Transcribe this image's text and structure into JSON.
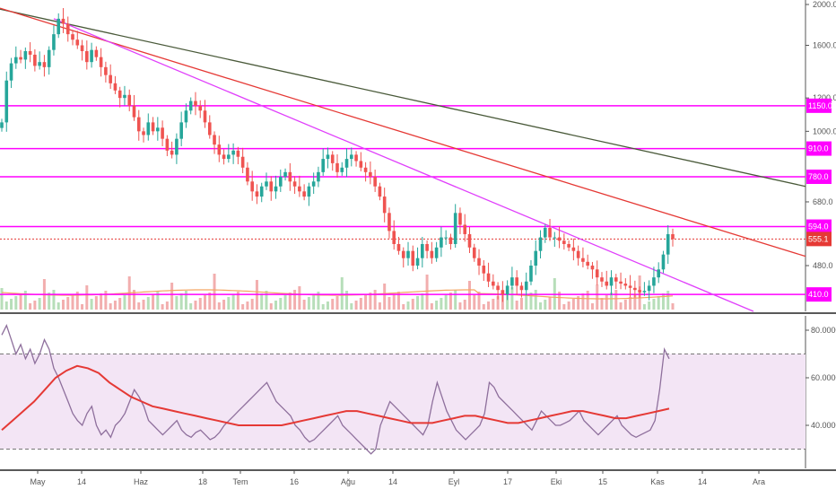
{
  "colors": {
    "up": "#26a69a",
    "down": "#ef5350",
    "volume_up": "#a5d6a7",
    "volume_down": "#ef9a9a",
    "horizontal_level": "#ff00ff",
    "trend_magenta": "#e040fb",
    "trend_red": "#e53935",
    "trend_dark": "#4a5a3a",
    "rsi_line": "#8e6f9c",
    "rsi_ma": "#e53935",
    "rsi_band": "#f3e5f5",
    "volume_ma": "#f4a460",
    "last_price_line": "#e53935"
  },
  "chart_data": [
    {
      "type": "candlestick",
      "title": "",
      "y_scale": "log",
      "ylim": [
        365,
        2030
      ],
      "y_ticks": [
        "2000.0",
        "1600.0",
        "1200.0",
        "1000.0",
        "680.0",
        "480.0"
      ],
      "x_ticks": [
        "May",
        "14",
        "Haz",
        "18",
        "Tem",
        "16",
        "Ağu",
        "14",
        "Eyl",
        "17",
        "Eki",
        "15",
        "Kas",
        "14",
        "Ara"
      ],
      "horizontal_levels": [
        {
          "label": "1150.0",
          "value": 1150
        },
        {
          "label": "910.0",
          "value": 910
        },
        {
          "label": "780.0",
          "value": 780
        },
        {
          "label": "594.0",
          "value": 594
        },
        {
          "label": "410.0",
          "value": 410
        }
      ],
      "last_price": {
        "label": "555.1",
        "value": 555.1
      },
      "close_series": [
        1050,
        1320,
        1450,
        1500,
        1480,
        1550,
        1520,
        1430,
        1460,
        1420,
        1560,
        1700,
        1850,
        1800,
        1700,
        1650,
        1600,
        1550,
        1460,
        1560,
        1500,
        1420,
        1360,
        1300,
        1250,
        1200,
        1220,
        1150,
        1080,
        1000,
        980,
        1050,
        1000,
        1020,
        960,
        900,
        880,
        960,
        1050,
        1120,
        1180,
        1150,
        1120,
        1050,
        980,
        930,
        880,
        860,
        880,
        900,
        870,
        820,
        760,
        720,
        700,
        740,
        760,
        720,
        740,
        780,
        800,
        760,
        740,
        720,
        700,
        740,
        760,
        800,
        860,
        880,
        840,
        800,
        820,
        860,
        880,
        850,
        820,
        800,
        780,
        740,
        700,
        640,
        580,
        540,
        520,
        500,
        520,
        480,
        500,
        540,
        520,
        500,
        530,
        560,
        560,
        540,
        640,
        600,
        570,
        530,
        500,
        480,
        460,
        440,
        430,
        420,
        410,
        430,
        450,
        430,
        420,
        440,
        480,
        520,
        560,
        590,
        560,
        560,
        550,
        540,
        530,
        520,
        500,
        490,
        480,
        470,
        450,
        440,
        430,
        450,
        440,
        435,
        430,
        425,
        420,
        415,
        418,
        430,
        450,
        470,
        510,
        570,
        555
      ],
      "close_series_subsampled": true
    },
    {
      "type": "line",
      "title": "",
      "ylim": [
        25,
        85
      ],
      "y_ticks": [
        "80.0000",
        "60.0000",
        "40.0000"
      ],
      "bands": [
        30,
        70
      ],
      "series": [
        {
          "values": [
            78,
            82,
            76,
            70,
            74,
            68,
            72,
            66,
            70,
            76,
            72,
            64,
            60,
            55,
            50,
            45,
            42,
            40,
            45,
            48,
            40,
            36,
            38,
            35,
            40,
            42,
            45,
            50,
            55,
            52,
            48,
            42,
            40,
            38,
            36,
            38,
            40,
            42,
            38,
            36,
            35,
            37,
            38,
            36,
            34,
            35,
            37,
            40,
            42,
            44,
            46,
            48,
            50,
            52,
            54,
            56,
            58,
            54,
            50,
            48,
            46,
            44,
            40,
            38,
            35,
            33,
            34,
            36,
            38,
            40,
            42,
            44,
            40,
            38,
            36,
            34,
            32,
            30,
            28,
            30,
            40,
            45,
            50,
            48,
            46,
            44,
            42,
            40,
            38,
            36,
            40,
            50,
            58,
            52,
            46,
            42,
            38,
            36,
            34,
            36,
            38,
            40,
            45,
            58,
            56,
            52,
            50,
            48,
            46,
            44,
            42,
            40,
            38,
            42,
            46,
            44,
            42,
            40,
            40,
            41,
            42,
            44,
            46,
            42,
            40,
            38,
            36,
            38,
            40,
            42,
            44,
            40,
            38,
            36,
            35,
            36,
            37,
            38,
            42,
            55,
            72,
            68
          ]
        },
        {
          "values": [
            38,
            42,
            46,
            50,
            55,
            60,
            63,
            65,
            64,
            62,
            58,
            55,
            52,
            50,
            48,
            47,
            46,
            45,
            44,
            43,
            42,
            41,
            40,
            40,
            40,
            40,
            40,
            41,
            42,
            43,
            44,
            45,
            46,
            46,
            45,
            44,
            43,
            42,
            41,
            41,
            41,
            42,
            43,
            44,
            44,
            43,
            42,
            41,
            41,
            42,
            43,
            44,
            45,
            46,
            46,
            45,
            44,
            43,
            43,
            44,
            45,
            46,
            47
          ]
        }
      ]
    }
  ]
}
